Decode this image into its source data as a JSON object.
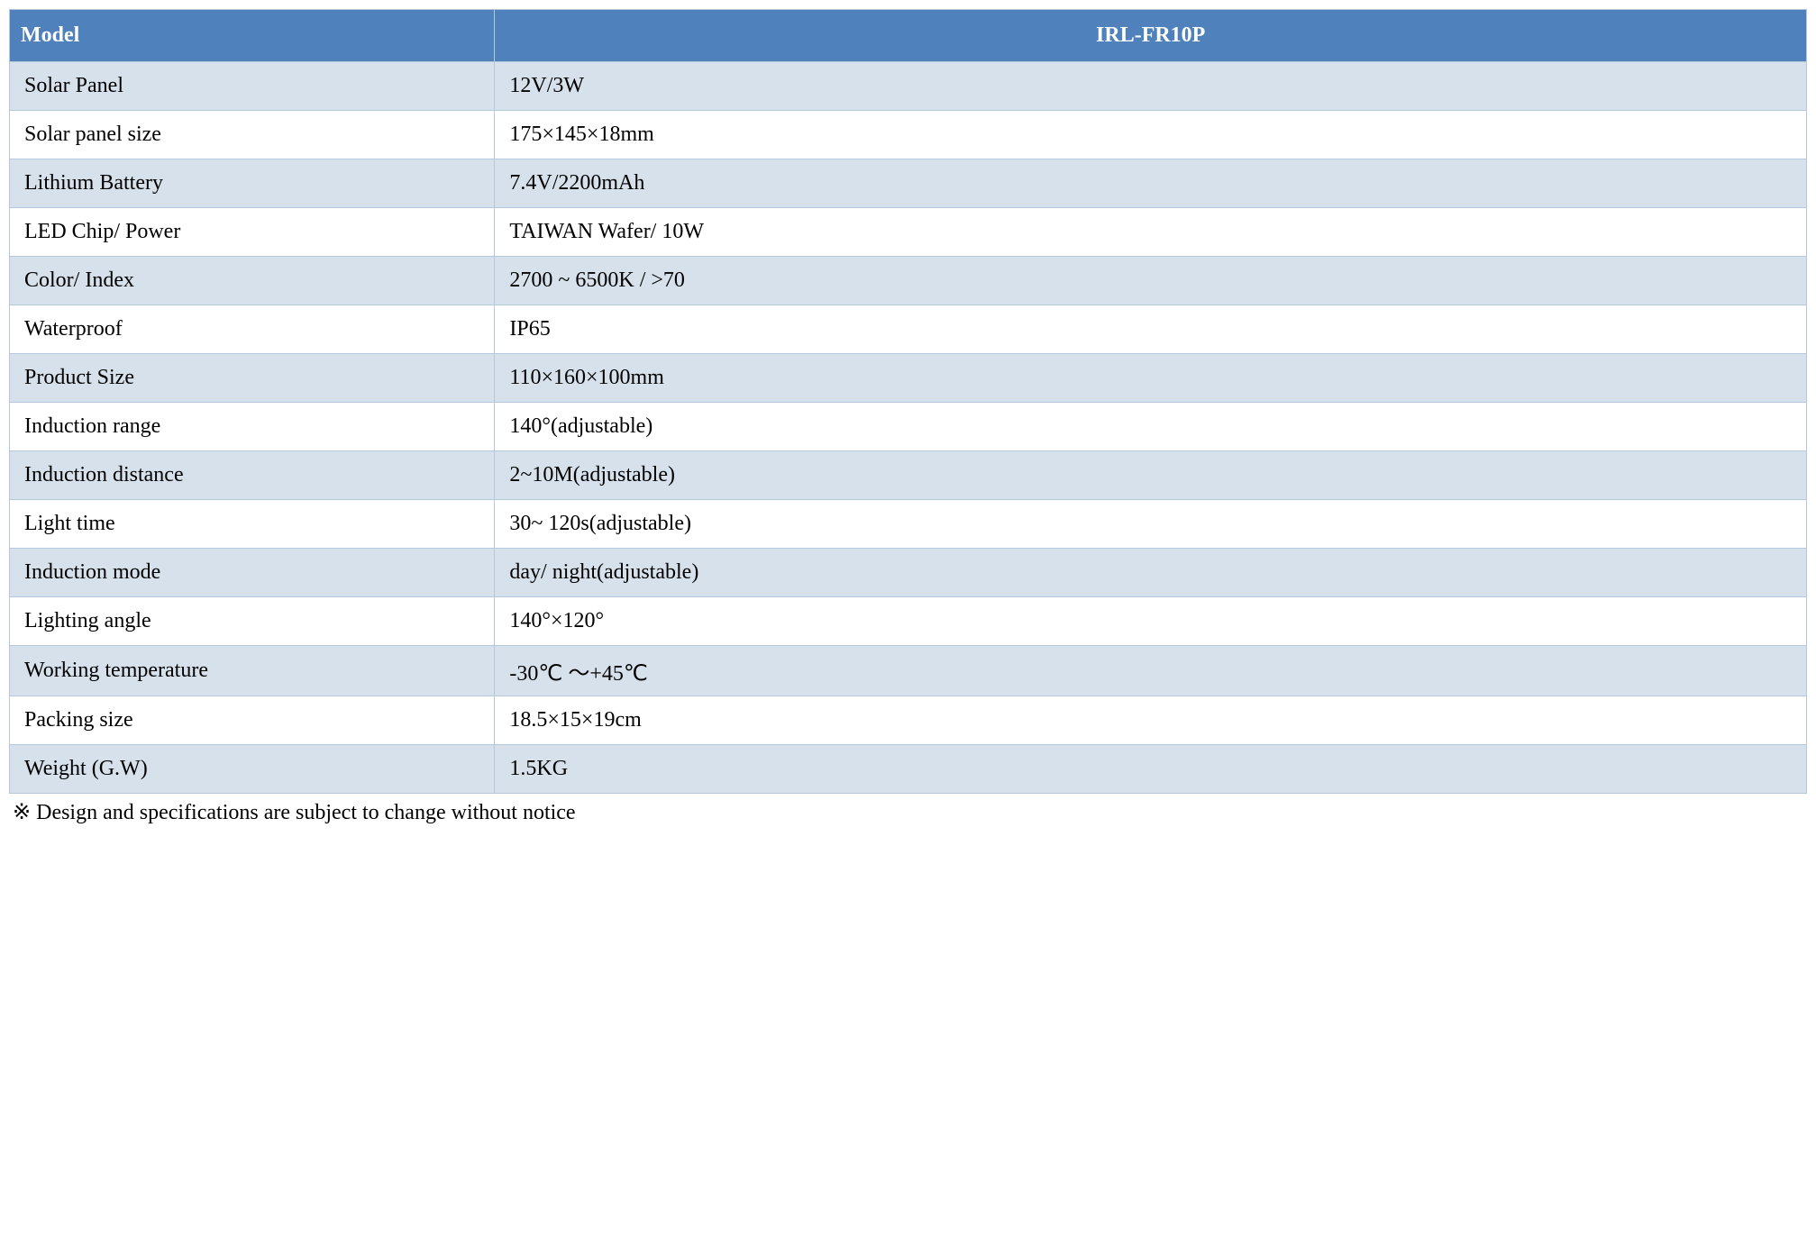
{
  "table": {
    "header": {
      "label_col": "Model",
      "value_col": "IRL-FR10P"
    },
    "rows": [
      {
        "label": "Solar Panel",
        "value": "12V/3W",
        "shaded": true
      },
      {
        "label": "Solar panel size",
        "value": "175×145×18mm",
        "shaded": false
      },
      {
        "label": "Lithium Battery",
        "value": "7.4V/2200mAh",
        "shaded": true
      },
      {
        "label": "LED Chip/ Power",
        "value": "TAIWAN Wafer/ 10W",
        "shaded": false
      },
      {
        "label": "Color/ Index",
        "value": "2700 ~ 6500K / >70",
        "shaded": true
      },
      {
        "label": "Waterproof",
        "value": "IP65",
        "shaded": false
      },
      {
        "label": "Product Size",
        "value": "110×160×100mm",
        "shaded": true
      },
      {
        "label": "Induction range",
        "value": "140°(adjustable)",
        "shaded": false
      },
      {
        "label": "Induction distance",
        "value": "2~10M(adjustable)",
        "shaded": true
      },
      {
        "label": "Light time",
        "value": "30~ 120s(adjustable)",
        "shaded": false
      },
      {
        "label": "Induction mode",
        "value": "day/ night(adjustable)",
        "shaded": true
      },
      {
        "label": "Lighting angle",
        "value": "140°×120°",
        "shaded": false
      },
      {
        "label": "Working temperature",
        "value": "-30℃ ～+45℃",
        "shaded": true
      },
      {
        "label": "Packing size",
        "value": "18.5×15×19cm",
        "shaded": false
      },
      {
        "label": "Weight (G.W)",
        "value": "1.5KG",
        "shaded": true
      }
    ],
    "styling": {
      "header_bg_color": "#4f81bd",
      "header_text_color": "#ffffff",
      "shaded_row_bg": "#d6e1ec",
      "plain_row_bg": "#ffffff",
      "border_color": "#b4c7dc",
      "font_family": "Times New Roman",
      "font_size_pt": 18,
      "label_col_width_pct": 27
    }
  },
  "footnote": "※  Design and specifications are subject to change without notice"
}
